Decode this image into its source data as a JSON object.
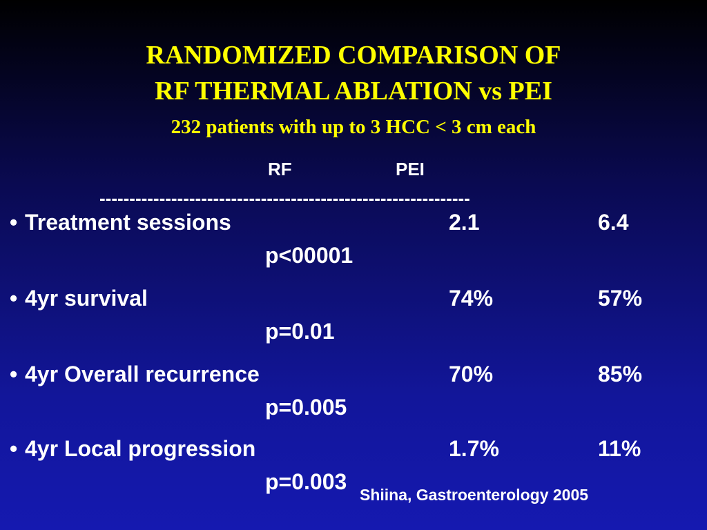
{
  "title": {
    "line1": "RANDOMIZED COMPARISON OF",
    "line2": "RF THERMAL ABLATION vs PEI",
    "line3": "232 patients with up to 3 HCC < 3 cm each"
  },
  "columns": {
    "rf": "RF",
    "pei": "PEI"
  },
  "divider": "--------------------------------------------------------------",
  "rows": [
    {
      "label": "Treatment sessions",
      "rf": "2.1",
      "pei": "6.4",
      "p": "p<00001"
    },
    {
      "label": "4yr survival",
      "rf": "74%",
      "pei": "57%",
      "p": "p=0.01"
    },
    {
      "label": "4yr Overall recurrence",
      "rf": "70%",
      "pei": "85%",
      "p": "p=0.005"
    },
    {
      "label": "4yr Local progression",
      "rf": "1.7%",
      "pei": "11%",
      "p": "p=0.003"
    }
  ],
  "bullet": "•",
  "citation": "Shiina, Gastroenterology 2005",
  "colors": {
    "title": "#ffff00",
    "text": "#ffffff",
    "background_top": "#000000",
    "background_bottom": "#1519b0"
  }
}
